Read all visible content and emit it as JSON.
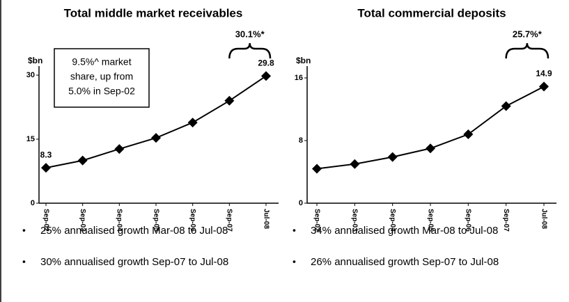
{
  "chart_data": [
    {
      "type": "line",
      "title": "Total middle market receivables",
      "y_label": "$bn",
      "categories": [
        "Sep-02",
        "Sep-03",
        "Sep-04",
        "Sep-05",
        "Sep-06",
        "Sep-07",
        "Jul-08"
      ],
      "values": [
        8.3,
        10,
        12.7,
        15.3,
        18.9,
        24,
        29.8
      ],
      "value_labels": [
        "8.3",
        null,
        null,
        null,
        null,
        null,
        "29.8"
      ],
      "color": "#000000",
      "ylim": [
        0,
        30
      ],
      "yticks": [
        0,
        15,
        30
      ],
      "growth_label": "30.1%*",
      "callout": [
        "9.5%^ market",
        "share, up from",
        "5.0% in Sep-02"
      ]
    },
    {
      "type": "line",
      "title": "Total commercial deposits",
      "y_label": "$bn",
      "categories": [
        "Sep-02",
        "Sep-03",
        "Sep-04",
        "Sep-05",
        "Sep-06",
        "Sep-07",
        "Jul-08"
      ],
      "values": [
        4.4,
        5,
        5.9,
        7,
        8.8,
        12.4,
        14.9
      ],
      "value_labels": [
        null,
        null,
        null,
        null,
        null,
        null,
        "14.9"
      ],
      "color": "#000000",
      "ylim": [
        0,
        16
      ],
      "yticks": [
        0,
        8,
        16
      ],
      "growth_label": "25.7%*"
    }
  ],
  "bullets": [
    [
      "25% annualised growth Mar-08 to Jul-08",
      "30% annualised growth Sep-07 to Jul-08"
    ],
    [
      "34% annualised growth Mar-08 to Jul-08",
      "26% annualised growth Sep-07 to Jul-08"
    ]
  ]
}
